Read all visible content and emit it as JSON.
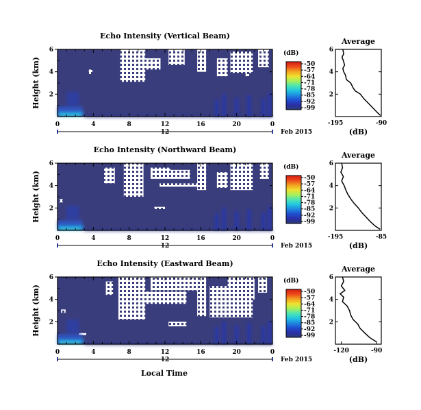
{
  "figure": {
    "xlabel": "Local Time",
    "date_label": "Feb 2015",
    "day_label": "12"
  },
  "colorbar": {
    "unit": "(dB)",
    "ticks": [
      "-50",
      "-57",
      "-64",
      "-71",
      "-78",
      "-85",
      "-92",
      "-99"
    ],
    "stops": [
      "#2b3a73",
      "#2a2fa8",
      "#1f4fd0",
      "#1f8be0",
      "#22c7e0",
      "#4ee6b0",
      "#a8f05a",
      "#f0e030",
      "#f2a020",
      "#ee4a1c",
      "#d41c14"
    ]
  },
  "colors": {
    "background_echo": "#3a3d7c",
    "no_data": "#ffffff",
    "near_surface": "#1f6fe0"
  },
  "chart_data": [
    {
      "type": "heatmap",
      "title": "Echo Intensity (Vertical Beam)",
      "ylabel": "Height (km)",
      "x_ticks": [
        "0",
        "4",
        "8",
        "12",
        "16",
        "20",
        "0"
      ],
      "x_range": [
        0,
        24
      ],
      "y_ticks": [
        "6",
        "4",
        "2"
      ],
      "y_range": [
        0,
        6
      ],
      "colorbar_range_db": [
        -99,
        -50
      ],
      "profile": {
        "title": "Average",
        "xlabel": "(dB)",
        "x_ticks": [
          "-195",
          "-90"
        ],
        "x_range": [
          -195,
          -90
        ],
        "y_ticks": [
          "6",
          "4",
          "2"
        ],
        "y_range": [
          0,
          6
        ],
        "points": [
          [
            -178,
            6.0
          ],
          [
            -176,
            5.6
          ],
          [
            -180,
            5.3
          ],
          [
            -177,
            5.0
          ],
          [
            -174,
            4.6
          ],
          [
            -178,
            4.3
          ],
          [
            -176,
            4.0
          ],
          [
            -172,
            3.7
          ],
          [
            -170,
            3.3
          ],
          [
            -160,
            3.0
          ],
          [
            -155,
            2.6
          ],
          [
            -150,
            2.3
          ],
          [
            -138,
            2.0
          ],
          [
            -130,
            1.6
          ],
          [
            -120,
            1.2
          ],
          [
            -110,
            0.8
          ],
          [
            -100,
            0.4
          ],
          [
            -92,
            0.1
          ]
        ]
      }
    },
    {
      "type": "heatmap",
      "title": "Echo Intensity (Northward Beam)",
      "ylabel": "Height (km)",
      "x_ticks": [
        "0",
        "4",
        "8",
        "12",
        "16",
        "20",
        "0"
      ],
      "x_range": [
        0,
        24
      ],
      "y_ticks": [
        "6",
        "4",
        "2"
      ],
      "y_range": [
        0,
        6
      ],
      "colorbar_range_db": [
        -99,
        -50
      ],
      "profile": {
        "title": "Average",
        "xlabel": "(dB)",
        "x_ticks": [
          "-195",
          "-85"
        ],
        "x_range": [
          -195,
          -85
        ],
        "y_ticks": [
          "6",
          "4",
          "2"
        ],
        "y_range": [
          0,
          6
        ],
        "points": [
          [
            -180,
            6.0
          ],
          [
            -178,
            5.6
          ],
          [
            -182,
            5.2
          ],
          [
            -176,
            4.8
          ],
          [
            -180,
            4.4
          ],
          [
            -174,
            4.0
          ],
          [
            -170,
            3.6
          ],
          [
            -165,
            3.2
          ],
          [
            -158,
            2.8
          ],
          [
            -150,
            2.4
          ],
          [
            -140,
            2.0
          ],
          [
            -132,
            1.6
          ],
          [
            -122,
            1.2
          ],
          [
            -112,
            0.8
          ],
          [
            -100,
            0.4
          ],
          [
            -88,
            0.1
          ]
        ]
      }
    },
    {
      "type": "heatmap",
      "title": "Echo Intensity (Eastward Beam)",
      "ylabel": "Height (km)",
      "x_ticks": [
        "0",
        "4",
        "8",
        "12",
        "16",
        "20",
        "0"
      ],
      "x_range": [
        0,
        24
      ],
      "y_ticks": [
        "6",
        "4",
        "2"
      ],
      "y_range": [
        0,
        6
      ],
      "colorbar_range_db": [
        -99,
        -50
      ],
      "profile": {
        "title": "Average",
        "xlabel": "(dB)",
        "x_ticks": [
          "-120",
          "-90"
        ],
        "x_range": [
          -125,
          -86
        ],
        "y_ticks": [
          "6",
          "4",
          "2"
        ],
        "y_range": [
          0,
          6
        ],
        "points": [
          [
            -119,
            6.0
          ],
          [
            -118,
            5.6
          ],
          [
            -120,
            5.2
          ],
          [
            -117,
            4.8
          ],
          [
            -121,
            4.5
          ],
          [
            -118,
            4.2
          ],
          [
            -119,
            3.8
          ],
          [
            -115,
            3.4
          ],
          [
            -113,
            3.0
          ],
          [
            -112,
            2.6
          ],
          [
            -110,
            2.2
          ],
          [
            -106,
            1.8
          ],
          [
            -104,
            1.4
          ],
          [
            -100,
            1.0
          ],
          [
            -96,
            0.6
          ],
          [
            -90,
            0.2
          ]
        ]
      }
    }
  ]
}
